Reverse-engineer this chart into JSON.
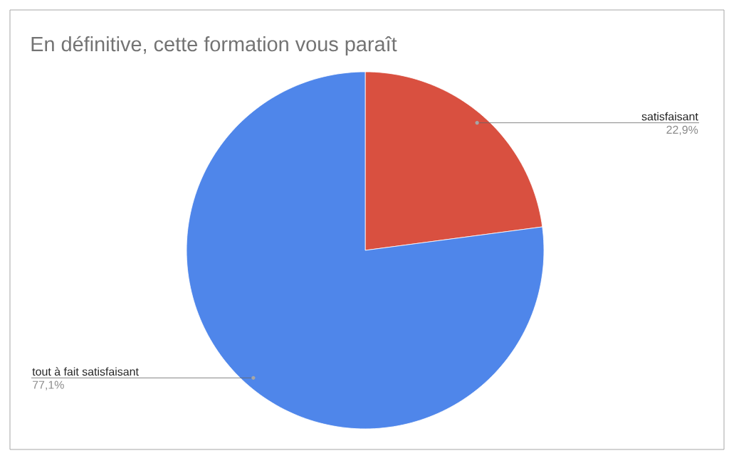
{
  "chart_data": {
    "type": "pie",
    "title": "En définitive, cette formation vous paraît",
    "categories": [
      "satisfaisant",
      "tout à fait satisfaisant"
    ],
    "values": [
      22.9,
      77.1
    ],
    "colors": [
      "#d95040",
      "#4f86ea"
    ],
    "value_labels": [
      "22,9%",
      "77,1%"
    ]
  }
}
